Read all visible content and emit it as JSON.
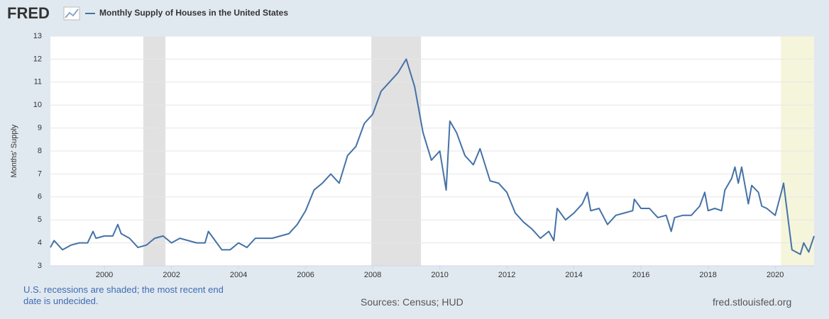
{
  "logo": "FRED",
  "notes": {
    "recession": "U.S. recessions are shaded; the most recent end date is undecided.",
    "sources": "Sources: Census; HUD",
    "site": "fred.stlouisfed.org"
  },
  "chart_data": {
    "type": "line",
    "ylabel": "Months' Supply",
    "x": [
      1998.39,
      1998.5,
      1998.75,
      1999.0,
      1999.25,
      1999.5,
      1999.66,
      1999.75,
      2000.0,
      2000.25,
      2000.4,
      2000.5,
      2000.75,
      2001.0,
      2001.25,
      2001.5,
      2001.75,
      2002.0,
      2002.25,
      2002.5,
      2002.75,
      2003.0,
      2003.1,
      2003.25,
      2003.5,
      2003.75,
      2004.0,
      2004.25,
      2004.5,
      2004.75,
      2005.0,
      2005.25,
      2005.5,
      2005.75,
      2006.0,
      2006.25,
      2006.5,
      2006.75,
      2007.0,
      2007.25,
      2007.5,
      2007.75,
      2008.0,
      2008.25,
      2008.5,
      2008.75,
      2009.0,
      2009.25,
      2009.5,
      2009.75,
      2010.0,
      2010.19,
      2010.3,
      2010.5,
      2010.75,
      2011.0,
      2011.2,
      2011.5,
      2011.75,
      2012.0,
      2012.25,
      2012.5,
      2012.75,
      2013.0,
      2013.25,
      2013.4,
      2013.5,
      2013.75,
      2014.0,
      2014.25,
      2014.4,
      2014.5,
      2014.75,
      2015.0,
      2015.25,
      2015.5,
      2015.75,
      2015.8,
      2016.0,
      2016.25,
      2016.5,
      2016.75,
      2016.9,
      2017.0,
      2017.25,
      2017.5,
      2017.75,
      2017.9,
      2018.0,
      2018.2,
      2018.4,
      2018.5,
      2018.7,
      2018.8,
      2018.9,
      2019.0,
      2019.2,
      2019.3,
      2019.5,
      2019.6,
      2019.75,
      2020.0,
      2020.2,
      2020.25,
      2020.5,
      2020.75,
      2020.85,
      2021.0,
      2021.16
    ],
    "series": [
      {
        "name": "Monthly Supply of Houses in the United States",
        "color": "#4572a7",
        "values": [
          3.8,
          4.1,
          3.7,
          3.9,
          4.0,
          4.0,
          4.5,
          4.2,
          4.3,
          4.3,
          4.8,
          4.4,
          4.2,
          3.8,
          3.9,
          4.2,
          4.3,
          4.0,
          4.2,
          4.1,
          4.0,
          4.0,
          4.5,
          4.2,
          3.7,
          3.7,
          4.0,
          3.8,
          4.2,
          4.2,
          4.2,
          4.3,
          4.4,
          4.8,
          5.4,
          6.3,
          6.6,
          7.0,
          6.6,
          7.8,
          8.2,
          9.2,
          9.6,
          10.6,
          11.0,
          11.4,
          12.0,
          10.8,
          8.8,
          7.6,
          8.0,
          6.3,
          9.3,
          8.8,
          7.8,
          7.4,
          8.1,
          6.7,
          6.6,
          6.2,
          5.3,
          4.9,
          4.6,
          4.2,
          4.5,
          4.1,
          5.5,
          5.0,
          5.3,
          5.7,
          6.2,
          5.4,
          5.5,
          4.8,
          5.2,
          5.3,
          5.4,
          5.9,
          5.5,
          5.5,
          5.1,
          5.2,
          4.5,
          5.1,
          5.2,
          5.2,
          5.6,
          6.2,
          5.4,
          5.5,
          5.4,
          6.3,
          6.8,
          7.3,
          6.6,
          7.3,
          5.7,
          6.5,
          6.2,
          5.6,
          5.5,
          5.2,
          6.3,
          6.6,
          3.7,
          3.5,
          4.0,
          3.6,
          4.3
        ]
      }
    ],
    "recessions": [
      [
        2001.16,
        2001.82
      ],
      [
        2007.96,
        2009.44
      ],
      [
        2020.17,
        2021.16
      ]
    ],
    "recession_color": "#e1e1e1",
    "recent_recession_color": "#f5f5dc",
    "xlim": [
      1998.39,
      2021.16
    ],
    "ylim": [
      3,
      13
    ],
    "xticks": [
      2000,
      2002,
      2004,
      2006,
      2008,
      2010,
      2012,
      2014,
      2016,
      2018,
      2020
    ],
    "yticks": [
      3,
      4,
      5,
      6,
      7,
      8,
      9,
      10,
      11,
      12,
      13
    ],
    "grid": true
  }
}
